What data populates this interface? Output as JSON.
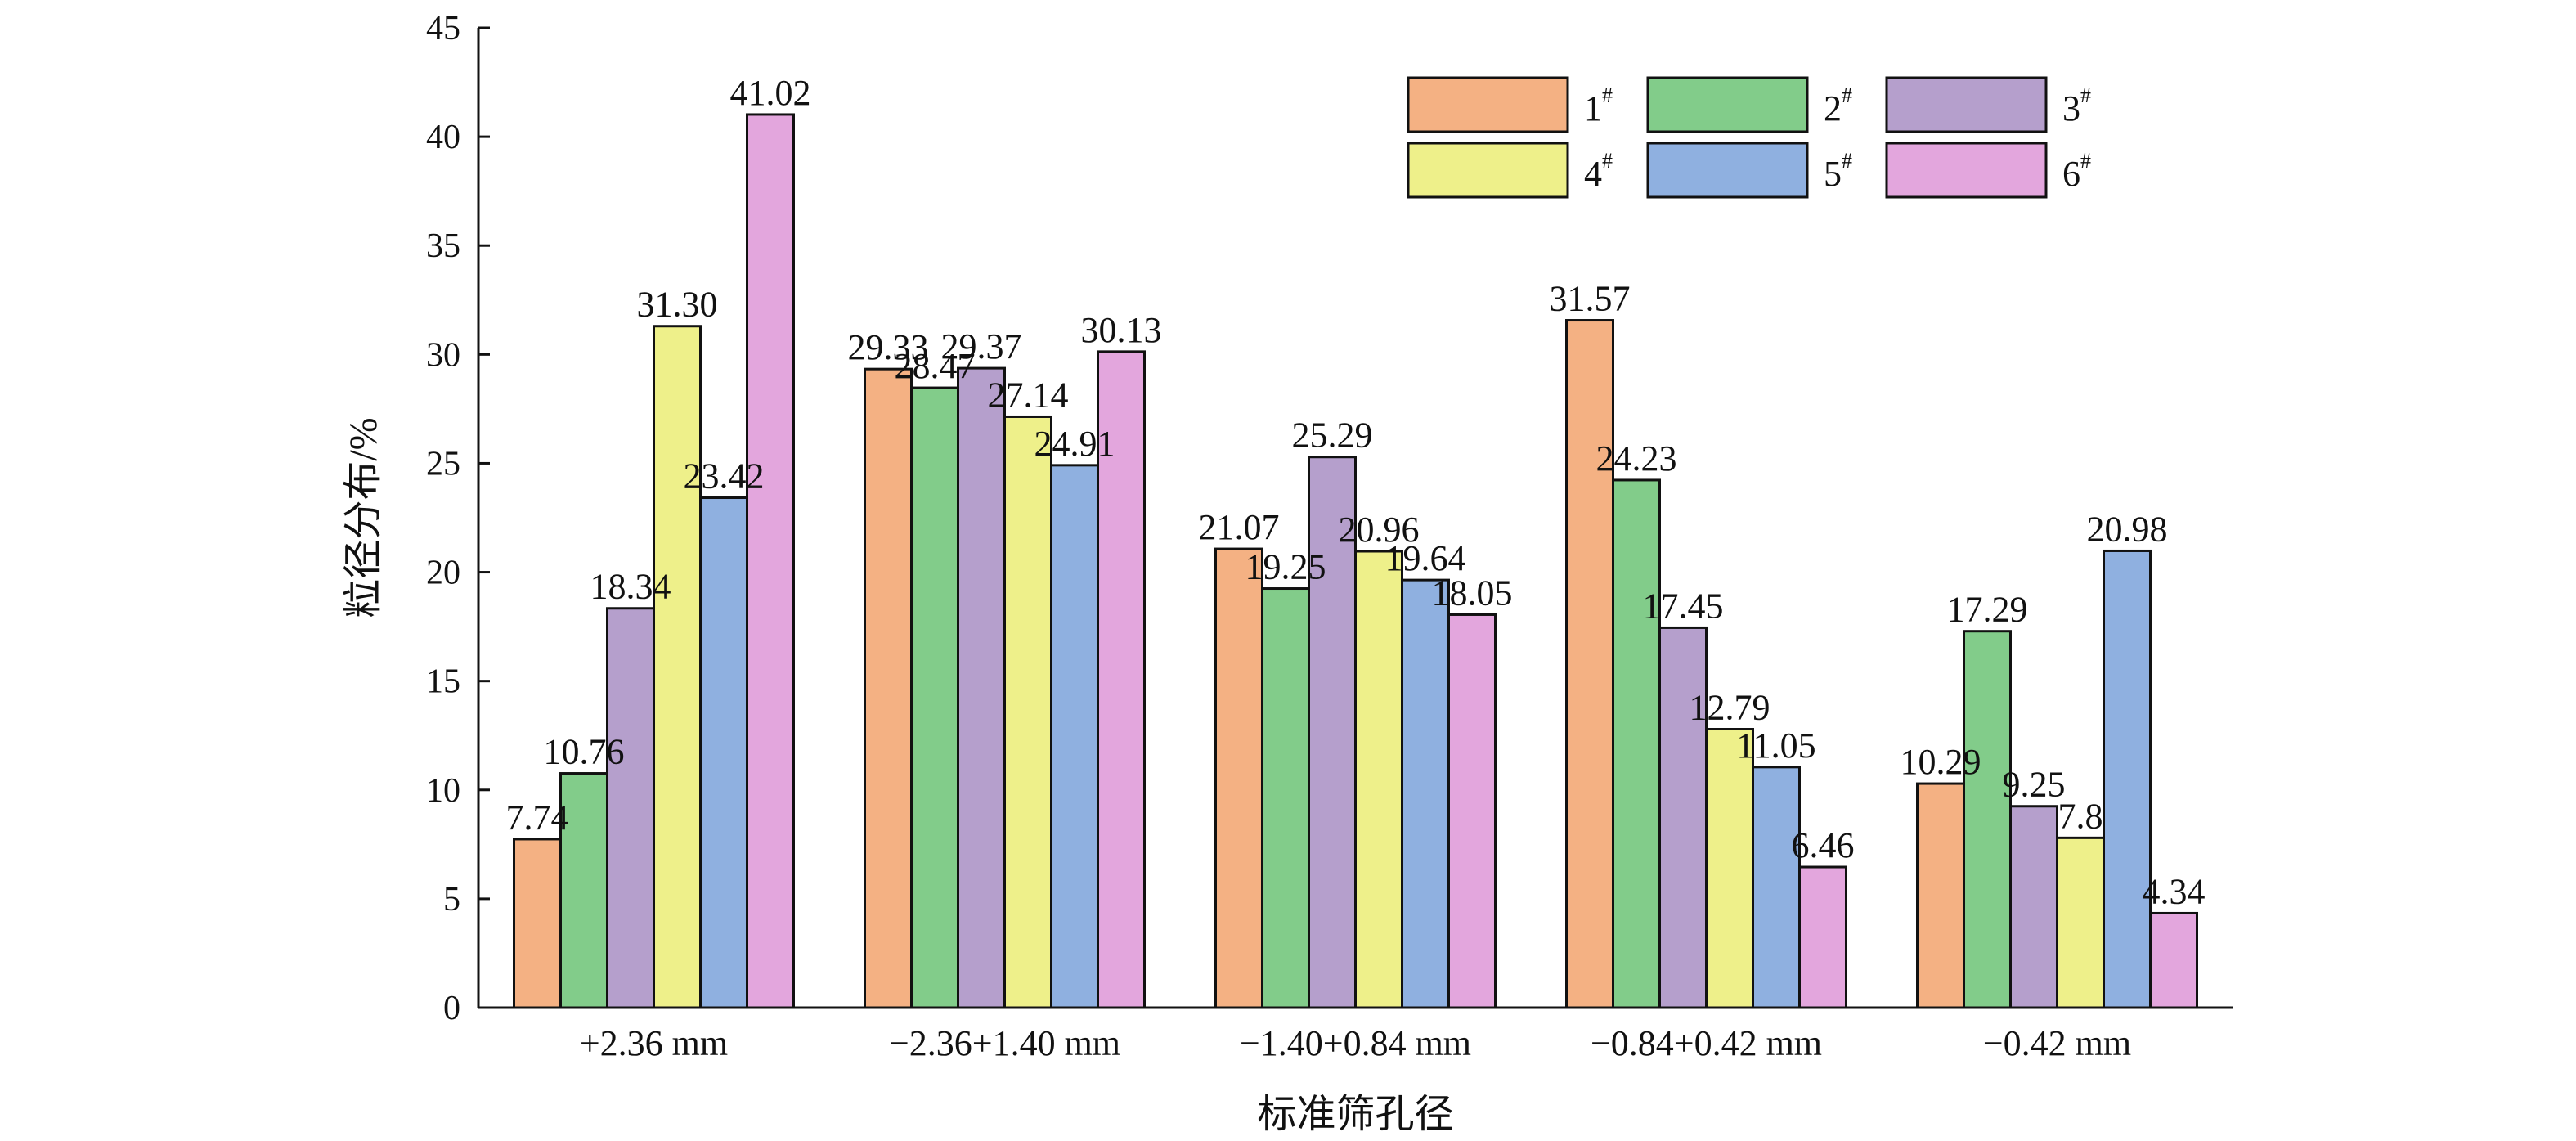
{
  "chart_data": {
    "type": "bar",
    "title": "",
    "xlabel": "标准筛孔径",
    "ylabel": "粒径分布/%",
    "ylim": [
      0,
      45
    ],
    "yticks": [
      0,
      5,
      10,
      15,
      20,
      25,
      30,
      35,
      40,
      45
    ],
    "grid": false,
    "legend_position": "top-right",
    "categories": [
      "+2.36 mm",
      "−2.36+1.40 mm",
      "−1.40+0.84 mm",
      "−0.84+0.42 mm",
      "−0.42 mm"
    ],
    "series": [
      {
        "name": "1",
        "sup": "#",
        "color": "#F4B183",
        "values": [
          7.74,
          29.33,
          21.07,
          31.57,
          10.29
        ],
        "labels": [
          "7.74",
          "29.33",
          "21.07",
          "31.57",
          "10.29"
        ]
      },
      {
        "name": "2",
        "sup": "#",
        "color": "#82CC8A",
        "values": [
          10.76,
          28.47,
          19.25,
          24.23,
          17.29
        ],
        "labels": [
          "10.76",
          "28.47",
          "19.25",
          "24.23",
          "17.29"
        ]
      },
      {
        "name": "3",
        "sup": "#",
        "color": "#B59FCC",
        "values": [
          18.34,
          29.37,
          25.29,
          17.45,
          9.25
        ],
        "labels": [
          "18.34",
          "29.37",
          "25.29",
          "17.45",
          "9.25"
        ]
      },
      {
        "name": "4",
        "sup": "#",
        "color": "#EEF08A",
        "values": [
          31.3,
          27.14,
          20.96,
          12.79,
          7.8
        ],
        "labels": [
          "31.30",
          "27.14",
          "20.96",
          "12.79",
          "7.8"
        ]
      },
      {
        "name": "5",
        "sup": "#",
        "color": "#8FB0E0",
        "values": [
          23.42,
          24.91,
          19.64,
          11.05,
          20.98
        ],
        "labels": [
          "23.42",
          "24.91",
          "19.64",
          "11.05",
          "20.98"
        ]
      },
      {
        "name": "6",
        "sup": "#",
        "color": "#E3A6DD",
        "values": [
          41.02,
          30.13,
          18.05,
          6.46,
          4.34
        ],
        "labels": [
          "41.02",
          "30.13",
          "18.05",
          "6.46",
          "4.34"
        ]
      }
    ]
  }
}
